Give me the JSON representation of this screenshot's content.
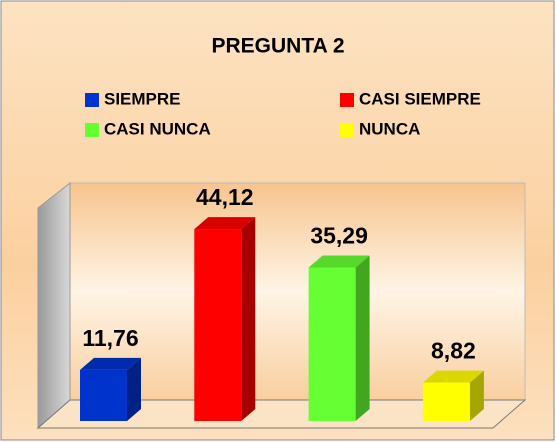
{
  "chart_data": {
    "type": "bar",
    "title": "PREGUNTA 2",
    "legend": "top",
    "series": [
      {
        "name": "SIEMPRE",
        "color": "#0033cc",
        "values": [
          11.76
        ],
        "value_labels": [
          "11,76"
        ]
      },
      {
        "name": "CASI SIEMPRE",
        "color": "#ff0000",
        "values": [
          44.12
        ],
        "value_labels": [
          "44,12"
        ]
      },
      {
        "name": "CASI NUNCA",
        "color": "#66ff33",
        "values": [
          35.29
        ],
        "value_labels": [
          "35,29"
        ]
      },
      {
        "name": "NUNCA",
        "color": "#ffff00",
        "values": [
          8.82
        ],
        "value_labels": [
          "8,82"
        ]
      }
    ]
  }
}
